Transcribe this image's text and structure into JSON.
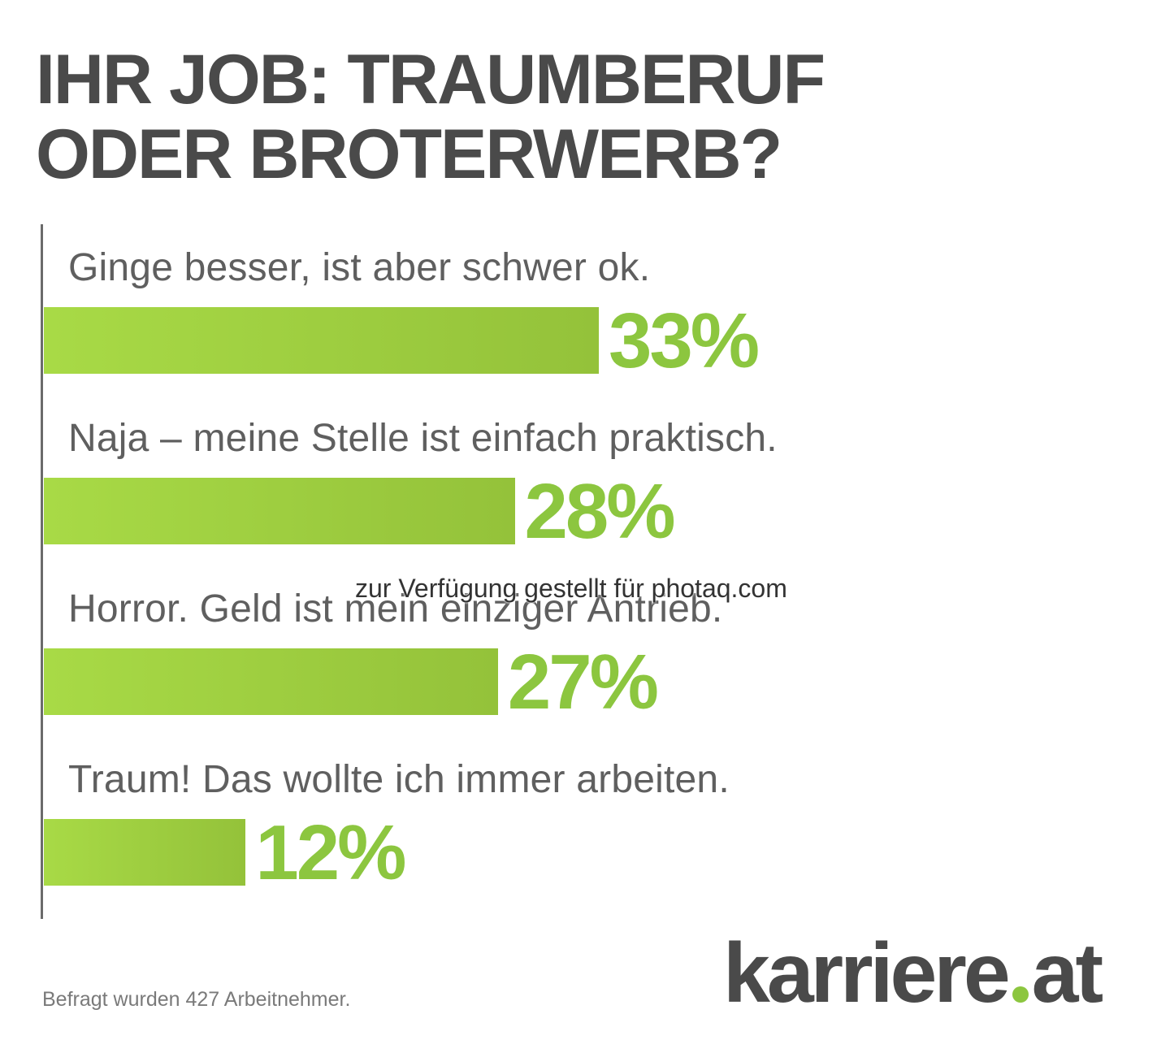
{
  "title": {
    "line1": "IHR JOB: TRAUMBERUF",
    "line2": "ODER BROTERWERB?"
  },
  "chart_data": {
    "type": "bar",
    "orientation": "horizontal",
    "categories": [
      "Ginge besser, ist aber schwer ok.",
      "Naja – meine Stelle ist einfach praktisch.",
      "Horror. Geld ist mein einziger Antrieb.",
      "Traum! Das wollte ich immer arbeiten."
    ],
    "values": [
      33,
      28,
      27,
      12
    ],
    "value_labels": [
      "33%",
      "28%",
      "27%",
      "12%"
    ],
    "unit": "%",
    "bar_color": "#8cc63f",
    "grid": false,
    "legend": "none"
  },
  "watermark": "zur Verfügung gestellt für photaq.com",
  "footnote": "Befragt wurden 427 Arbeitnehmer.",
  "logo": {
    "name": "karriere",
    "suffix": "at",
    "text_color": "#4a4a4a",
    "accent_color": "#8cc63f"
  }
}
